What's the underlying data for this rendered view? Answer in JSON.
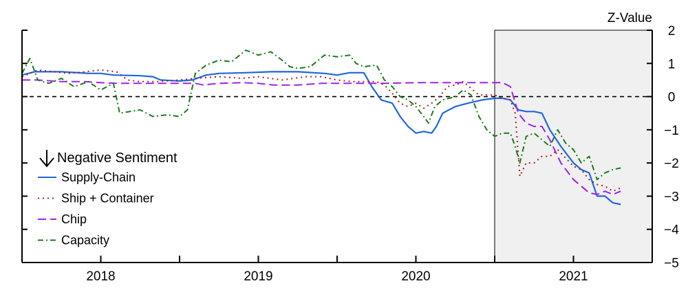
{
  "chart_data": {
    "type": "line",
    "title": "",
    "xlabel": "",
    "ylabel": "Z-Value",
    "ylim": [
      -5,
      2
    ],
    "yticks": [
      2,
      1,
      0,
      -1,
      -2,
      -3,
      -4,
      -5
    ],
    "xlim": [
      2017.5,
      2021.5
    ],
    "xticks": [
      2018,
      2019,
      2020,
      2021
    ],
    "xtick_labels": [
      "2018",
      "2019",
      "2020",
      "2021"
    ],
    "shaded_region": [
      2020.5,
      2021.5
    ],
    "reference_line": 0,
    "legend": {
      "title": "Negative Sentiment",
      "arrow": "down-arrow-icon",
      "placement": "lower-left"
    },
    "series": [
      {
        "name": "Supply-Chain",
        "style": "solid",
        "color": "#1f66e0",
        "points": [
          [
            2017.5,
            0.65
          ],
          [
            2017.58,
            0.75
          ],
          [
            2017.75,
            0.75
          ],
          [
            2017.92,
            0.7
          ],
          [
            2018.0,
            0.7
          ],
          [
            2018.08,
            0.65
          ],
          [
            2018.25,
            0.63
          ],
          [
            2018.33,
            0.6
          ],
          [
            2018.38,
            0.5
          ],
          [
            2018.5,
            0.47
          ],
          [
            2018.58,
            0.5
          ],
          [
            2018.67,
            0.65
          ],
          [
            2018.75,
            0.7
          ],
          [
            2018.92,
            0.72
          ],
          [
            2019.08,
            0.75
          ],
          [
            2019.25,
            0.75
          ],
          [
            2019.42,
            0.7
          ],
          [
            2019.5,
            0.65
          ],
          [
            2019.58,
            0.72
          ],
          [
            2019.67,
            0.72
          ],
          [
            2019.72,
            0.3
          ],
          [
            2019.78,
            -0.1
          ],
          [
            2019.85,
            -0.2
          ],
          [
            2019.9,
            -0.6
          ],
          [
            2019.95,
            -0.9
          ],
          [
            2020.0,
            -1.1
          ],
          [
            2020.05,
            -1.05
          ],
          [
            2020.1,
            -1.1
          ],
          [
            2020.13,
            -0.9
          ],
          [
            2020.17,
            -0.5
          ],
          [
            2020.25,
            -0.3
          ],
          [
            2020.33,
            -0.2
          ],
          [
            2020.42,
            -0.1
          ],
          [
            2020.5,
            -0.05
          ],
          [
            2020.55,
            -0.05
          ],
          [
            2020.6,
            -0.1
          ],
          [
            2020.65,
            -0.4
          ],
          [
            2020.7,
            -0.45
          ],
          [
            2020.75,
            -0.45
          ],
          [
            2020.8,
            -0.5
          ],
          [
            2020.85,
            -1.0
          ],
          [
            2020.92,
            -1.5
          ],
          [
            2021.0,
            -2.0
          ],
          [
            2021.05,
            -2.2
          ],
          [
            2021.1,
            -2.3
          ],
          [
            2021.15,
            -3.0
          ],
          [
            2021.2,
            -3.0
          ],
          [
            2021.25,
            -3.2
          ],
          [
            2021.3,
            -3.25
          ]
        ]
      },
      {
        "name": "Ship + Container",
        "style": "dotted",
        "color": "#a51c1c",
        "points": [
          [
            2017.5,
            0.6
          ],
          [
            2017.6,
            0.8
          ],
          [
            2017.7,
            0.75
          ],
          [
            2017.8,
            0.7
          ],
          [
            2017.9,
            0.75
          ],
          [
            2018.0,
            0.8
          ],
          [
            2018.1,
            0.75
          ],
          [
            2018.17,
            0.5
          ],
          [
            2018.25,
            0.45
          ],
          [
            2018.35,
            0.45
          ],
          [
            2018.5,
            0.5
          ],
          [
            2018.6,
            0.55
          ],
          [
            2018.75,
            0.6
          ],
          [
            2018.9,
            0.55
          ],
          [
            2019.0,
            0.6
          ],
          [
            2019.15,
            0.5
          ],
          [
            2019.3,
            0.6
          ],
          [
            2019.4,
            0.6
          ],
          [
            2019.5,
            0.5
          ],
          [
            2019.6,
            0.45
          ],
          [
            2019.7,
            0.45
          ],
          [
            2019.75,
            0.45
          ],
          [
            2019.8,
            0.35
          ],
          [
            2019.85,
            0.1
          ],
          [
            2019.9,
            -0.2
          ],
          [
            2019.95,
            -0.3
          ],
          [
            2020.0,
            -0.2
          ],
          [
            2020.05,
            -0.35
          ],
          [
            2020.1,
            -0.2
          ],
          [
            2020.15,
            0.0
          ],
          [
            2020.2,
            0.3
          ],
          [
            2020.25,
            0.35
          ],
          [
            2020.3,
            0.45
          ],
          [
            2020.4,
            0.05
          ],
          [
            2020.5,
            0.05
          ],
          [
            2020.55,
            -0.05
          ],
          [
            2020.6,
            -0.1
          ],
          [
            2020.63,
            -0.5
          ],
          [
            2020.66,
            -2.4
          ],
          [
            2020.7,
            -2.0
          ],
          [
            2020.75,
            -2.0
          ],
          [
            2020.8,
            -1.8
          ],
          [
            2020.85,
            -1.8
          ],
          [
            2020.9,
            -1.6
          ],
          [
            2020.95,
            -1.85
          ],
          [
            2021.0,
            -2.1
          ],
          [
            2021.05,
            -2.2
          ],
          [
            2021.1,
            -2.5
          ],
          [
            2021.15,
            -2.65
          ],
          [
            2021.2,
            -2.7
          ],
          [
            2021.25,
            -2.85
          ],
          [
            2021.3,
            -2.75
          ]
        ]
      },
      {
        "name": "Chip",
        "style": "dashed",
        "color": "#a020f0",
        "points": [
          [
            2017.5,
            0.5
          ],
          [
            2017.6,
            0.5
          ],
          [
            2017.75,
            0.45
          ],
          [
            2017.9,
            0.45
          ],
          [
            2018.0,
            0.42
          ],
          [
            2018.1,
            0.4
          ],
          [
            2018.25,
            0.4
          ],
          [
            2018.5,
            0.4
          ],
          [
            2018.6,
            0.4
          ],
          [
            2018.65,
            0.35
          ],
          [
            2018.75,
            0.4
          ],
          [
            2018.9,
            0.42
          ],
          [
            2019.0,
            0.4
          ],
          [
            2019.1,
            0.35
          ],
          [
            2019.25,
            0.35
          ],
          [
            2019.4,
            0.4
          ],
          [
            2019.5,
            0.4
          ],
          [
            2019.6,
            0.4
          ],
          [
            2019.7,
            0.4
          ],
          [
            2019.8,
            0.4
          ],
          [
            2020.0,
            0.42
          ],
          [
            2020.25,
            0.42
          ],
          [
            2020.4,
            0.42
          ],
          [
            2020.55,
            0.42
          ],
          [
            2020.6,
            0.3
          ],
          [
            2020.65,
            -0.5
          ],
          [
            2020.7,
            -0.8
          ],
          [
            2020.75,
            -0.9
          ],
          [
            2020.8,
            -0.9
          ],
          [
            2020.85,
            -1.3
          ],
          [
            2020.92,
            -2.0
          ],
          [
            2021.0,
            -2.5
          ],
          [
            2021.05,
            -2.7
          ],
          [
            2021.1,
            -2.9
          ],
          [
            2021.15,
            -2.95
          ],
          [
            2021.2,
            -2.85
          ],
          [
            2021.25,
            -2.95
          ],
          [
            2021.3,
            -2.85
          ]
        ]
      },
      {
        "name": "Capacity",
        "style": "dash-dot",
        "color": "#1a7a1a",
        "points": [
          [
            2017.5,
            0.7
          ],
          [
            2017.55,
            1.15
          ],
          [
            2017.6,
            0.5
          ],
          [
            2017.67,
            0.4
          ],
          [
            2017.75,
            0.55
          ],
          [
            2017.83,
            0.3
          ],
          [
            2017.92,
            0.45
          ],
          [
            2018.0,
            0.2
          ],
          [
            2018.08,
            0.4
          ],
          [
            2018.12,
            -0.5
          ],
          [
            2018.25,
            -0.4
          ],
          [
            2018.33,
            -0.6
          ],
          [
            2018.42,
            -0.55
          ],
          [
            2018.5,
            -0.6
          ],
          [
            2018.55,
            -0.4
          ],
          [
            2018.6,
            0.7
          ],
          [
            2018.67,
            0.95
          ],
          [
            2018.75,
            1.1
          ],
          [
            2018.83,
            1.05
          ],
          [
            2018.92,
            1.4
          ],
          [
            2019.0,
            1.25
          ],
          [
            2019.08,
            1.35
          ],
          [
            2019.15,
            1.1
          ],
          [
            2019.2,
            0.9
          ],
          [
            2019.25,
            0.85
          ],
          [
            2019.33,
            0.9
          ],
          [
            2019.42,
            1.25
          ],
          [
            2019.5,
            1.2
          ],
          [
            2019.58,
            1.25
          ],
          [
            2019.62,
            1.0
          ],
          [
            2019.67,
            0.9
          ],
          [
            2019.75,
            0.95
          ],
          [
            2019.8,
            0.5
          ],
          [
            2019.85,
            0.3
          ],
          [
            2019.9,
            0.0
          ],
          [
            2019.95,
            -0.1
          ],
          [
            2020.0,
            -0.3
          ],
          [
            2020.05,
            -0.6
          ],
          [
            2020.08,
            -0.8
          ],
          [
            2020.12,
            -0.3
          ],
          [
            2020.17,
            -0.1
          ],
          [
            2020.25,
            0.0
          ],
          [
            2020.3,
            0.2
          ],
          [
            2020.35,
            0.05
          ],
          [
            2020.4,
            -0.6
          ],
          [
            2020.45,
            -1.0
          ],
          [
            2020.5,
            -1.2
          ],
          [
            2020.55,
            -1.1
          ],
          [
            2020.6,
            -1.1
          ],
          [
            2020.63,
            -1.5
          ],
          [
            2020.66,
            -2.0
          ],
          [
            2020.7,
            -1.2
          ],
          [
            2020.75,
            -1.1
          ],
          [
            2020.8,
            -1.3
          ],
          [
            2020.85,
            -1.5
          ],
          [
            2020.9,
            -1.0
          ],
          [
            2020.95,
            -1.4
          ],
          [
            2021.0,
            -1.6
          ],
          [
            2021.05,
            -2.0
          ],
          [
            2021.1,
            -1.8
          ],
          [
            2021.15,
            -2.5
          ],
          [
            2021.2,
            -2.3
          ],
          [
            2021.25,
            -2.2
          ],
          [
            2021.3,
            -2.15
          ]
        ]
      }
    ]
  }
}
